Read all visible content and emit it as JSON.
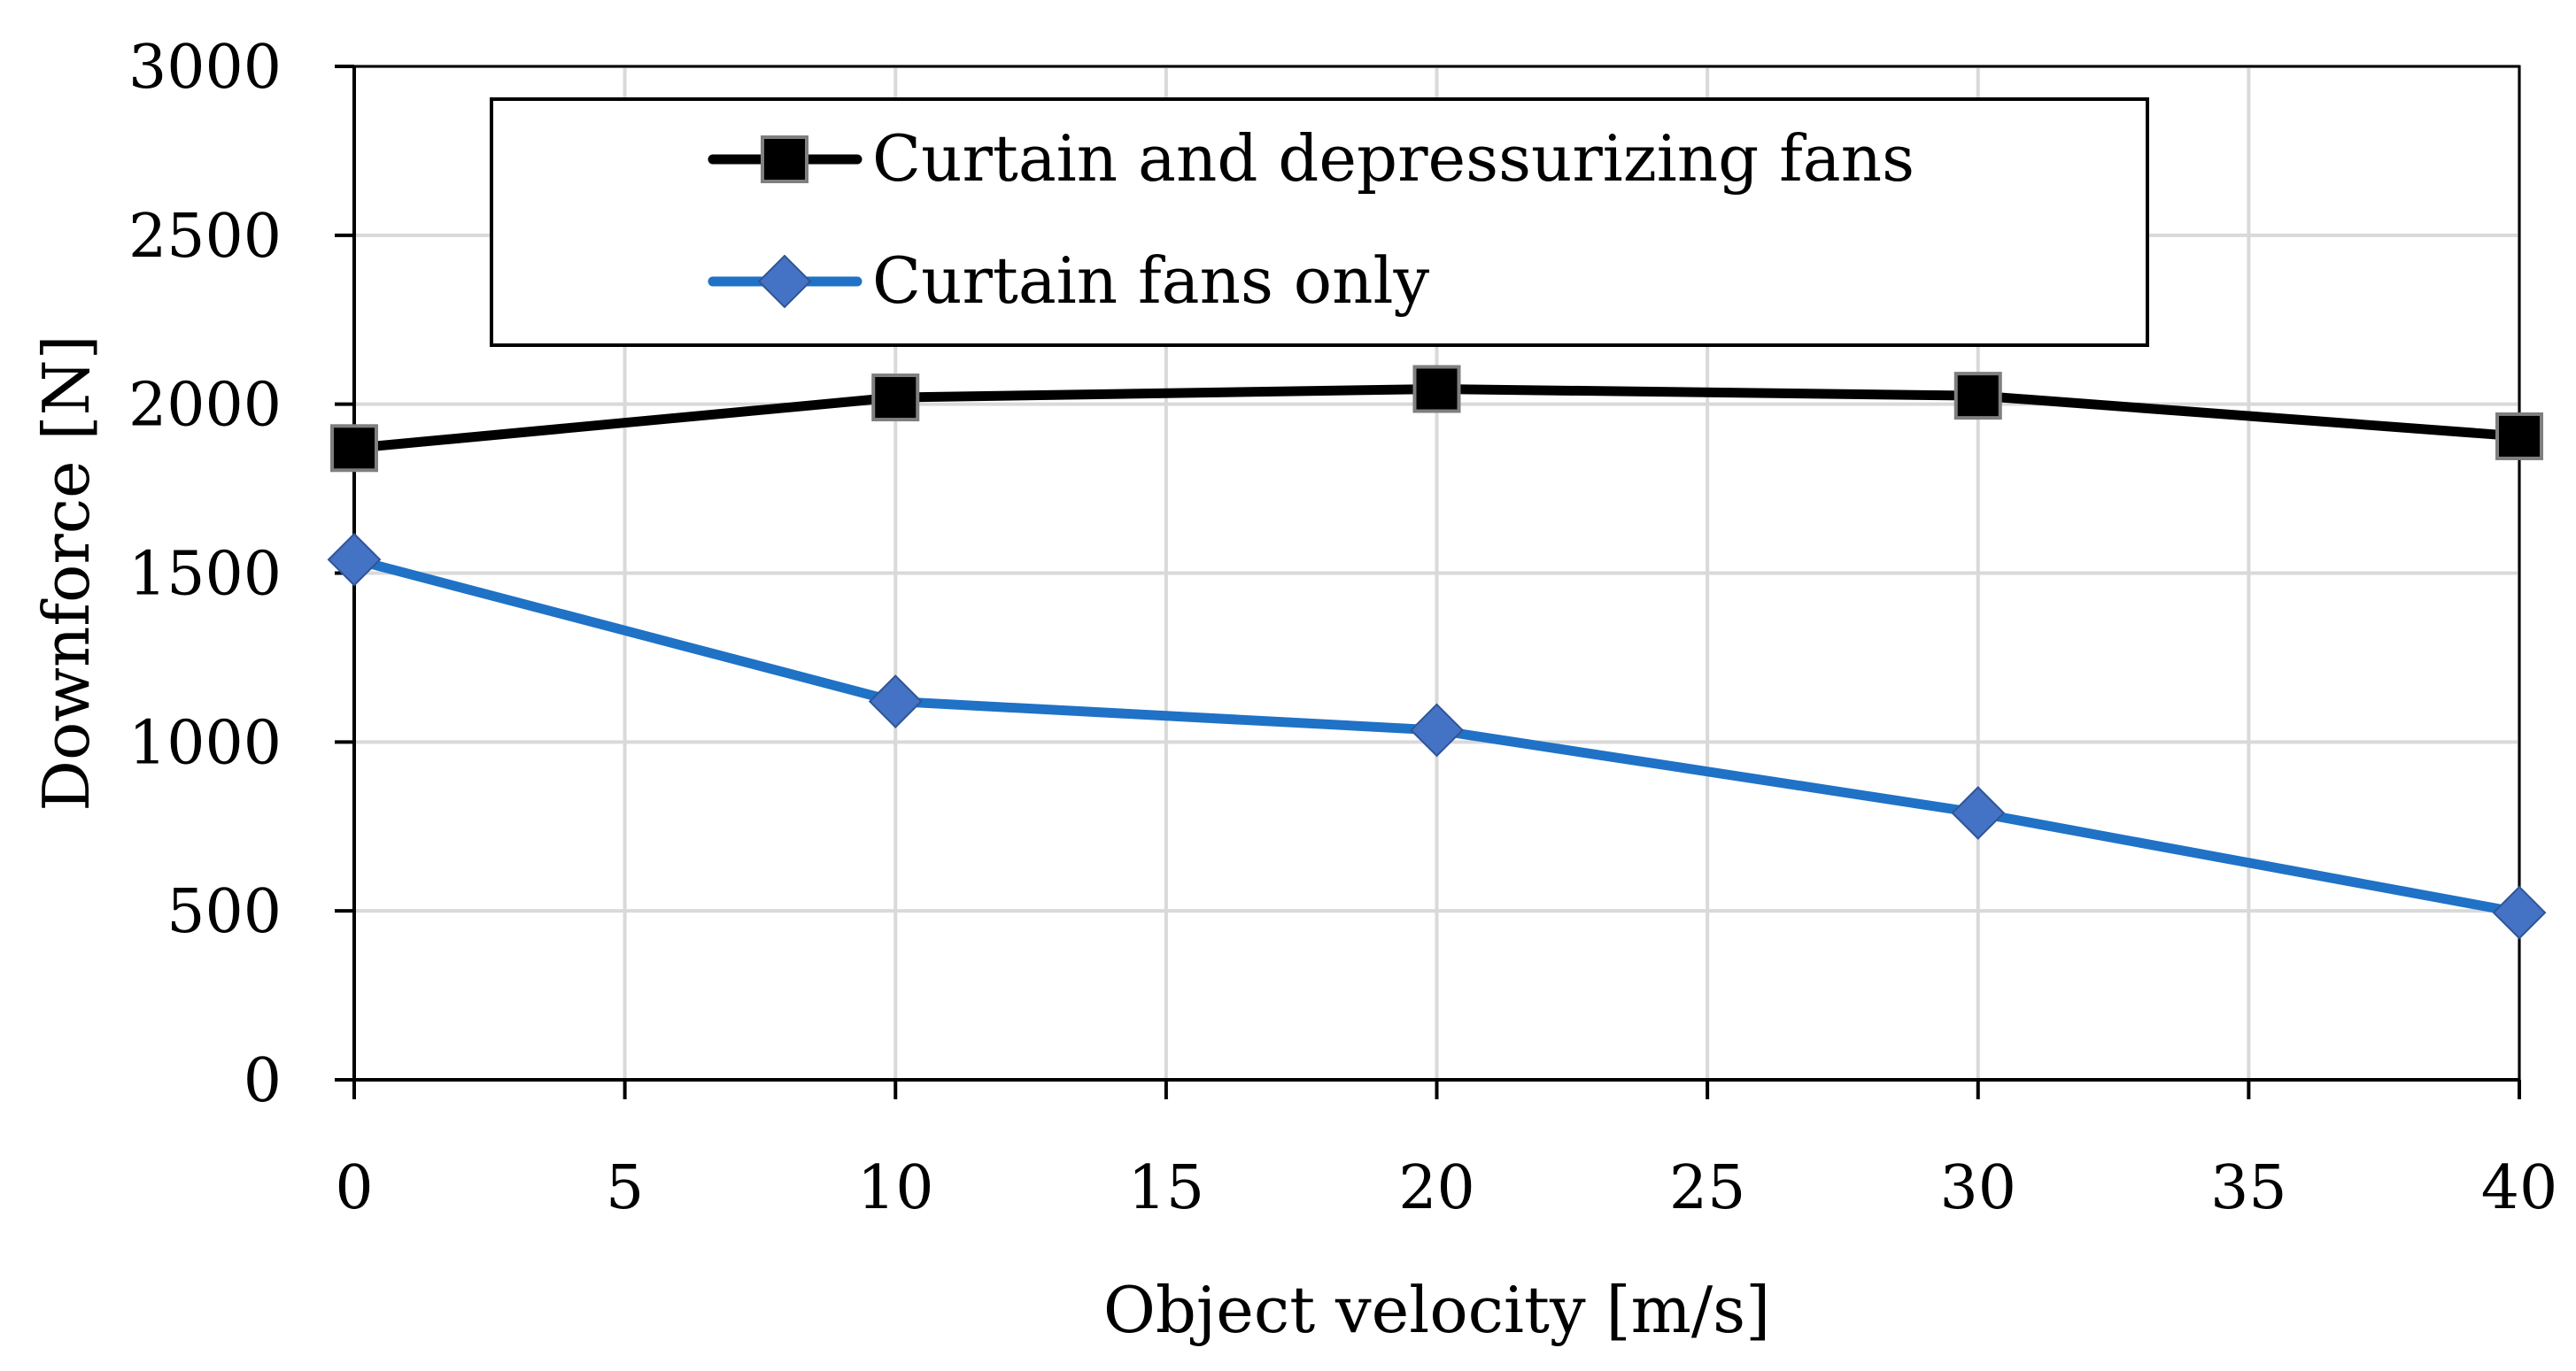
{
  "chart_data": {
    "type": "line",
    "title": "",
    "xlabel": "Object velocity [m/s]",
    "ylabel": "Downforce [N]",
    "xlim": [
      0,
      40
    ],
    "ylim": [
      0,
      3000
    ],
    "xticks": [
      0,
      5,
      10,
      15,
      20,
      25,
      30,
      35,
      40
    ],
    "yticks": [
      0,
      500,
      1000,
      1500,
      2000,
      2500,
      3000
    ],
    "xtick_labels": [
      "0",
      "5",
      "10",
      "15",
      "20",
      "25",
      "30",
      "35",
      "40"
    ],
    "ytick_labels": [
      "0",
      "500",
      "1000",
      "1500",
      "2000",
      "2500",
      "3000"
    ],
    "grid": true,
    "legend_position": "top",
    "x": [
      0,
      10,
      20,
      30,
      40
    ],
    "series": [
      {
        "name": "Curtain and depressurizing fans",
        "values": [
          1870,
          2020,
          2045,
          2025,
          1905
        ],
        "color": "#000000",
        "marker": "square"
      },
      {
        "name": "Curtain fans only",
        "values": [
          1540,
          1120,
          1035,
          790,
          495
        ],
        "color": "#1f72c6",
        "marker_color": "#4472c4",
        "marker": "diamond"
      }
    ]
  }
}
